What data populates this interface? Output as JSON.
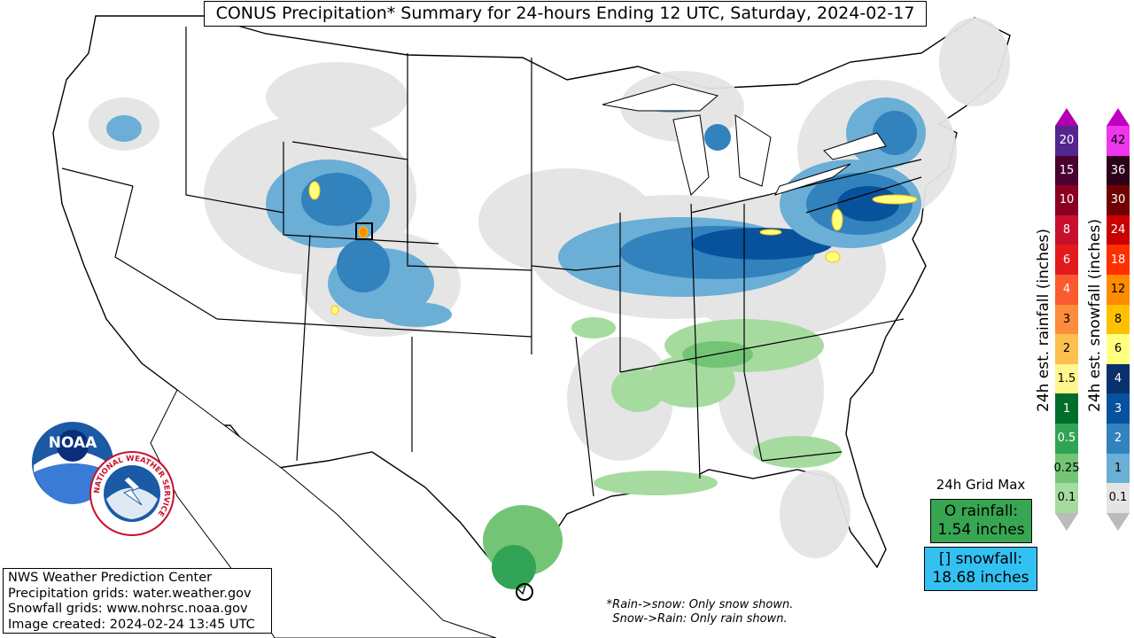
{
  "title": "CONUS Precipitation* Summary for 24-hours Ending 12 UTC, Saturday, 2024-02-17",
  "credits": [
    "NWS Weather Prediction Center",
    "Precipitation grids: water.weather.gov",
    "Snowfall grids: www.nohrsc.noaa.gov",
    "Image created: 2024-02-24 13:45 UTC"
  ],
  "footnote": {
    "line1": "*Rain->snow: Only snow shown.",
    "line2": "Snow->Rain: Only rain shown."
  },
  "grid_max": {
    "heading": "24h Grid Max",
    "rain_line1": "O rainfall:",
    "rain_line2": "1.54 inches",
    "snow_line1": "[] snowfall:",
    "snow_line2": "18.68 inches",
    "rain_color": "#37a552",
    "snow_color": "#33c1f2"
  },
  "rain_scale": {
    "label": "24h est. rainfall (inches)",
    "levels": [
      "0.1",
      "0.25",
      "0.5",
      "1",
      "1.5",
      "2",
      "3",
      "4",
      "6",
      "8",
      "10",
      "15",
      "20"
    ],
    "colors": [
      "#a6dba0",
      "#74c476",
      "#31a354",
      "#006d2c",
      "#fff68f",
      "#fdc04e",
      "#fd8d3c",
      "#fb5a2e",
      "#e31a1c",
      "#c8102e",
      "#8b0020",
      "#4a0030",
      "#54278f"
    ],
    "arrow_top": "#b000b0",
    "arrow_bot": "#ffffff"
  },
  "snow_scale": {
    "label": "24h est. snowfall (inches)",
    "levels": [
      "0.1",
      "1",
      "2",
      "3",
      "4",
      "6",
      "8",
      "12",
      "18",
      "24",
      "30",
      "36",
      "42"
    ],
    "colors": [
      "#e4e4e4",
      "#6baed6",
      "#3182bd",
      "#08519c",
      "#08306b",
      "#ffff80",
      "#ffc000",
      "#ff8c00",
      "#ff3000",
      "#c80000",
      "#700000",
      "#2b0018",
      "#ee36ee"
    ],
    "arrow_top": "#c000c0",
    "arrow_bot": "#ffffff"
  },
  "logos": {
    "noaa_text": "NOAA",
    "nws_text": "NATIONAL WEATHER SERVICE"
  }
}
